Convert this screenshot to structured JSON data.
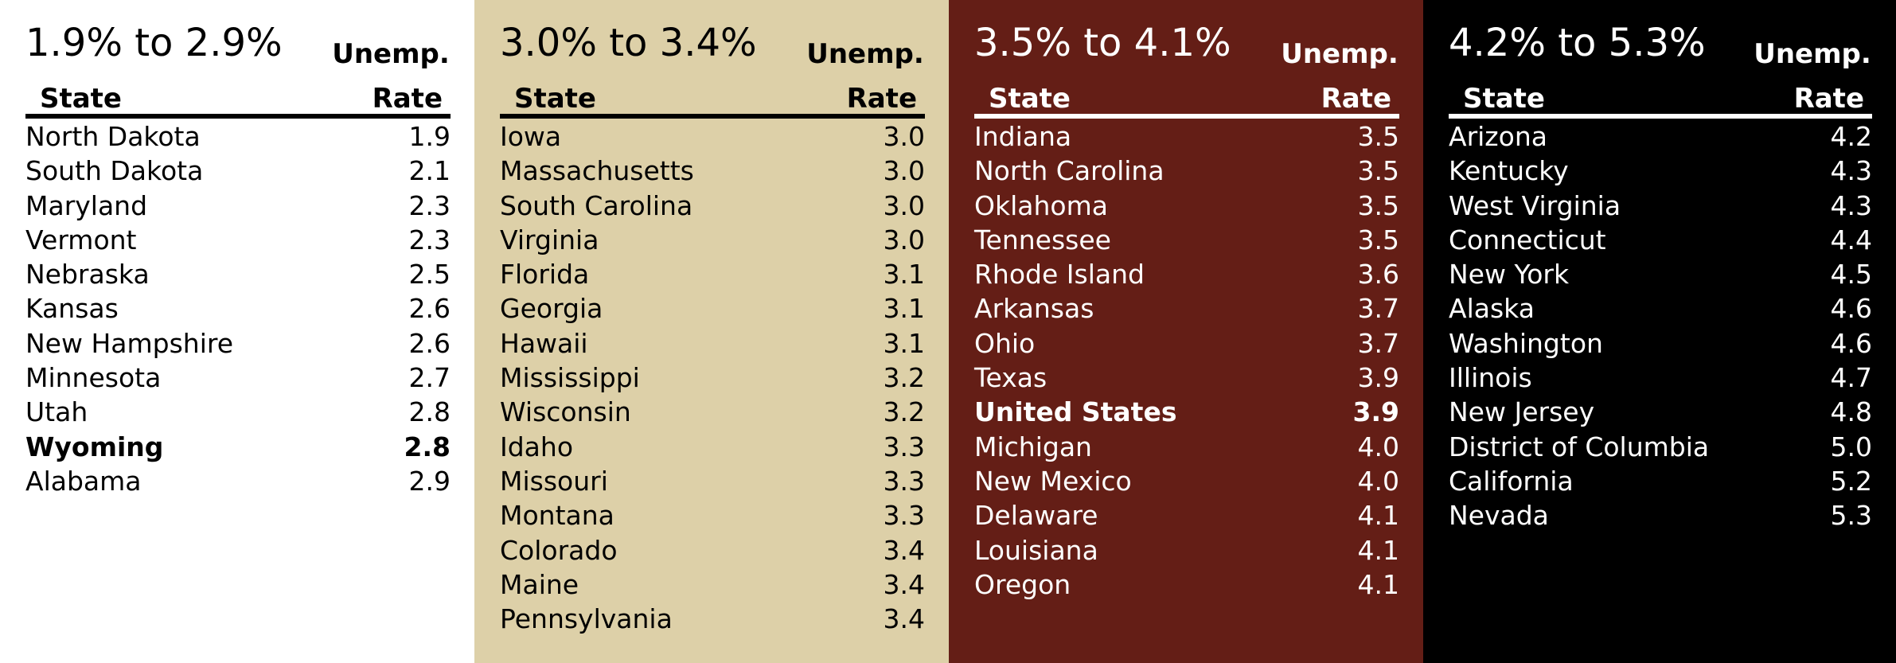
{
  "chart_data": {
    "type": "table",
    "title": "",
    "column_headers": {
      "top": "Unemp.",
      "state": "State",
      "rate": "Rate"
    },
    "panels": [
      {
        "range": "1.9% to 2.9%",
        "background": "#ffffff",
        "text_color": "#000000",
        "rule_color": "#000000",
        "rows": [
          {
            "state": "North Dakota",
            "rate": "1.9",
            "bold": false
          },
          {
            "state": "South Dakota",
            "rate": "2.1",
            "bold": false
          },
          {
            "state": "Maryland",
            "rate": "2.3",
            "bold": false
          },
          {
            "state": "Vermont",
            "rate": "2.3",
            "bold": false
          },
          {
            "state": "Nebraska",
            "rate": "2.5",
            "bold": false
          },
          {
            "state": "Kansas",
            "rate": "2.6",
            "bold": false
          },
          {
            "state": "New Hampshire",
            "rate": "2.6",
            "bold": false
          },
          {
            "state": "Minnesota",
            "rate": "2.7",
            "bold": false
          },
          {
            "state": "Utah",
            "rate": "2.8",
            "bold": false
          },
          {
            "state": "Wyoming",
            "rate": "2.8",
            "bold": true
          },
          {
            "state": "Alabama",
            "rate": "2.9",
            "bold": false
          }
        ]
      },
      {
        "range": "3.0% to 3.4%",
        "background": "#ddd0a8",
        "text_color": "#000000",
        "rule_color": "#000000",
        "rows": [
          {
            "state": "Iowa",
            "rate": "3.0",
            "bold": false
          },
          {
            "state": "Massachusetts",
            "rate": "3.0",
            "bold": false
          },
          {
            "state": "South Carolina",
            "rate": "3.0",
            "bold": false
          },
          {
            "state": "Virginia",
            "rate": "3.0",
            "bold": false
          },
          {
            "state": "Florida",
            "rate": "3.1",
            "bold": false
          },
          {
            "state": "Georgia",
            "rate": "3.1",
            "bold": false
          },
          {
            "state": "Hawaii",
            "rate": "3.1",
            "bold": false
          },
          {
            "state": "Mississippi",
            "rate": "3.2",
            "bold": false
          },
          {
            "state": "Wisconsin",
            "rate": "3.2",
            "bold": false
          },
          {
            "state": "Idaho",
            "rate": "3.3",
            "bold": false
          },
          {
            "state": "Missouri",
            "rate": "3.3",
            "bold": false
          },
          {
            "state": "Montana",
            "rate": "3.3",
            "bold": false
          },
          {
            "state": "Colorado",
            "rate": "3.4",
            "bold": false
          },
          {
            "state": "Maine",
            "rate": "3.4",
            "bold": false
          },
          {
            "state": "Pennsylvania",
            "rate": "3.4",
            "bold": false
          }
        ]
      },
      {
        "range": "3.5% to 4.1%",
        "background": "#641e16",
        "text_color": "#ffffff",
        "rule_color": "#ffffff",
        "rows": [
          {
            "state": "Indiana",
            "rate": "3.5",
            "bold": false
          },
          {
            "state": "North Carolina",
            "rate": "3.5",
            "bold": false
          },
          {
            "state": "Oklahoma",
            "rate": "3.5",
            "bold": false
          },
          {
            "state": "Tennessee",
            "rate": "3.5",
            "bold": false
          },
          {
            "state": "Rhode Island",
            "rate": "3.6",
            "bold": false
          },
          {
            "state": "Arkansas",
            "rate": "3.7",
            "bold": false
          },
          {
            "state": "Ohio",
            "rate": "3.7",
            "bold": false
          },
          {
            "state": "Texas",
            "rate": "3.9",
            "bold": false
          },
          {
            "state": "United States",
            "rate": "3.9",
            "bold": true
          },
          {
            "state": "Michigan",
            "rate": "4.0",
            "bold": false
          },
          {
            "state": "New Mexico",
            "rate": "4.0",
            "bold": false
          },
          {
            "state": "Delaware",
            "rate": "4.1",
            "bold": false
          },
          {
            "state": "Louisiana",
            "rate": "4.1",
            "bold": false
          },
          {
            "state": "Oregon",
            "rate": "4.1",
            "bold": false
          }
        ]
      },
      {
        "range": "4.2% to 5.3%",
        "background": "#000000",
        "text_color": "#ffffff",
        "rule_color": "#ffffff",
        "rows": [
          {
            "state": "Arizona",
            "rate": "4.2",
            "bold": false
          },
          {
            "state": "Kentucky",
            "rate": "4.3",
            "bold": false
          },
          {
            "state": "West Virginia",
            "rate": "4.3",
            "bold": false
          },
          {
            "state": "Connecticut",
            "rate": "4.4",
            "bold": false
          },
          {
            "state": "New York",
            "rate": "4.5",
            "bold": false
          },
          {
            "state": "Alaska",
            "rate": "4.6",
            "bold": false
          },
          {
            "state": "Washington",
            "rate": "4.6",
            "bold": false
          },
          {
            "state": "Illinois",
            "rate": "4.7",
            "bold": false
          },
          {
            "state": "New Jersey",
            "rate": "4.8",
            "bold": false
          },
          {
            "state": "District of Columbia",
            "rate": "5.0",
            "bold": false
          },
          {
            "state": "California",
            "rate": "5.2",
            "bold": false
          },
          {
            "state": "Nevada",
            "rate": "5.3",
            "bold": false
          }
        ]
      }
    ]
  }
}
